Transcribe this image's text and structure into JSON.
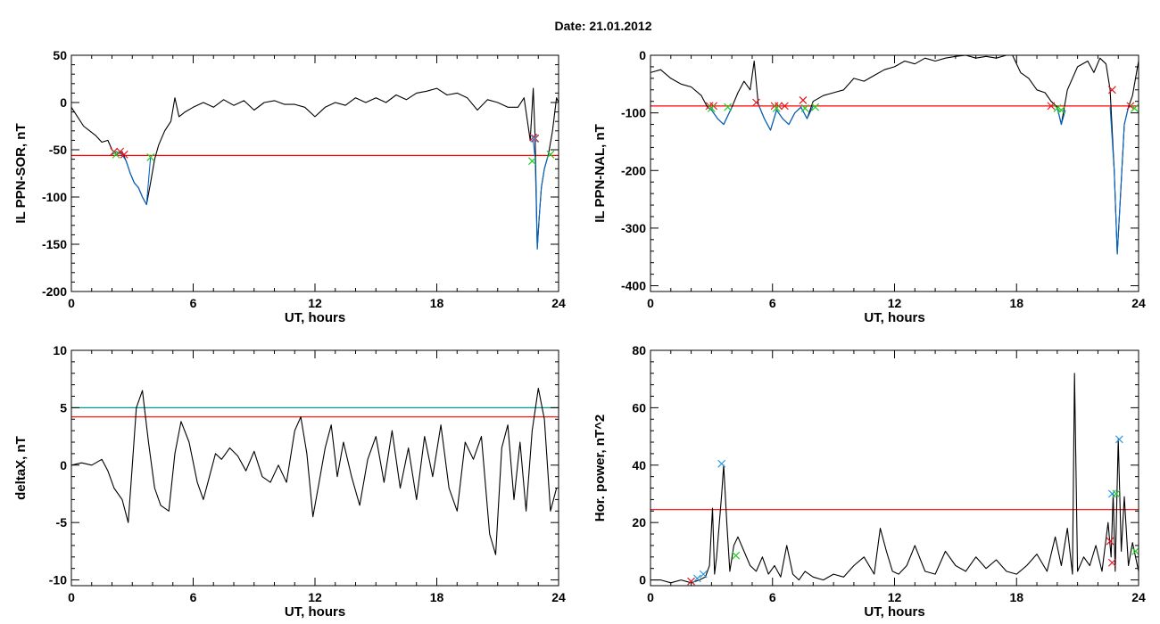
{
  "figure": {
    "title": "Date:  21.01.2012"
  },
  "colors": {
    "background": "#ffffff",
    "axis": "#000000",
    "series": "#000000",
    "threshold_red": "#ff0000",
    "threshold_teal": "#009999",
    "highlight_blue": "#0066cc",
    "marker_red": "#e8141e",
    "marker_green": "#22cc22",
    "marker_blue": "#3399dd"
  },
  "chart_data": [
    {
      "type": "line",
      "xlabel": "UT, hours",
      "ylabel": "IL PPN-SOR, nT",
      "xlim": [
        0,
        24
      ],
      "ylim": [
        -200,
        50
      ],
      "xticks": [
        0,
        6,
        12,
        18,
        24
      ],
      "yticks": [
        -200,
        -150,
        -100,
        -50,
        0,
        50
      ],
      "series": [
        {
          "color": "#000000",
          "x": [
            0,
            0.3,
            0.6,
            0.9,
            1.2,
            1.5,
            1.8,
            2.0,
            2.2,
            2.5,
            2.7,
            2.9,
            3.1,
            3.3,
            3.5,
            3.7,
            3.9,
            4.1,
            4.3,
            4.6,
            4.9,
            5.1,
            5.3,
            5.6,
            6.0,
            6.5,
            7.0,
            7.5,
            8.0,
            8.5,
            9.0,
            9.5,
            10.0,
            10.5,
            11.0,
            11.5,
            12.0,
            12.5,
            13.0,
            13.5,
            14.0,
            14.5,
            15.0,
            15.5,
            16.0,
            16.5,
            17.0,
            17.5,
            18.0,
            18.5,
            19.0,
            19.5,
            20.0,
            20.5,
            21.0,
            21.5,
            22.0,
            22.3,
            22.6,
            22.75,
            22.85,
            22.95,
            23.05,
            23.15,
            23.3,
            23.5,
            23.7,
            23.9,
            24.0
          ],
          "y": [
            -5,
            -15,
            -25,
            -30,
            -35,
            -42,
            -40,
            -50,
            -55,
            -52,
            -62,
            -75,
            -85,
            -90,
            -100,
            -108,
            -85,
            -60,
            -45,
            -30,
            -20,
            5,
            -15,
            -10,
            -5,
            0,
            -5,
            3,
            -3,
            2,
            -8,
            0,
            2,
            -2,
            -2,
            -5,
            -15,
            -5,
            0,
            -3,
            5,
            0,
            5,
            0,
            8,
            3,
            10,
            12,
            15,
            8,
            10,
            5,
            -8,
            3,
            0,
            -5,
            -5,
            5,
            -40,
            15,
            -40,
            -155,
            -120,
            -90,
            -70,
            -55,
            -30,
            5,
            0
          ]
        },
        {
          "color": "#0066cc",
          "x": [
            2.0,
            2.2,
            2.5,
            2.7,
            2.9,
            3.1,
            3.3,
            3.5,
            3.7,
            3.9
          ],
          "y": [
            -55,
            -52,
            -55,
            -62,
            -75,
            -85,
            -90,
            -100,
            -108,
            -58
          ]
        },
        {
          "color": "#0066cc",
          "x": [
            22.75,
            22.85,
            22.95,
            23.05,
            23.15,
            23.3,
            23.5
          ],
          "y": [
            -40,
            -60,
            -155,
            -120,
            -90,
            -70,
            -55
          ]
        }
      ],
      "hlines": [
        {
          "y": -56,
          "color": "#ff0000"
        }
      ],
      "markers": [
        {
          "x": 2.1,
          "y": -52,
          "color": "#e8141e"
        },
        {
          "x": 2.4,
          "y": -52,
          "color": "#e8141e"
        },
        {
          "x": 2.6,
          "y": -55,
          "color": "#e8141e"
        },
        {
          "x": 2.2,
          "y": -55,
          "color": "#22cc22"
        },
        {
          "x": 3.9,
          "y": -58,
          "color": "#22cc22"
        },
        {
          "x": 22.75,
          "y": -37,
          "color": "#e8141e"
        },
        {
          "x": 22.85,
          "y": -38,
          "color": "#e8141e"
        },
        {
          "x": 22.8,
          "y": -38,
          "color": "#3399dd"
        },
        {
          "x": 22.7,
          "y": -62,
          "color": "#22cc22"
        },
        {
          "x": 23.6,
          "y": -55,
          "color": "#22cc22"
        }
      ]
    },
    {
      "type": "line",
      "xlabel": "UT, hours",
      "ylabel": "IL PPN-NAL, nT",
      "xlim": [
        0,
        24
      ],
      "ylim": [
        -410,
        0
      ],
      "xticks": [
        0,
        6,
        12,
        18,
        24
      ],
      "yticks": [
        -400,
        -300,
        -200,
        -100,
        0
      ],
      "series": [
        {
          "color": "#000000",
          "x": [
            0,
            0.5,
            1.0,
            1.5,
            2.0,
            2.5,
            2.8,
            3.0,
            3.3,
            3.6,
            4.0,
            4.3,
            4.6,
            4.9,
            5.1,
            5.3,
            5.6,
            5.9,
            6.2,
            6.5,
            6.8,
            7.1,
            7.4,
            7.7,
            8.0,
            8.5,
            9.0,
            9.5,
            10.0,
            10.5,
            11.0,
            11.5,
            12.0,
            12.5,
            13.0,
            13.5,
            14.0,
            14.5,
            15.0,
            15.5,
            16.0,
            16.5,
            17.0,
            17.5,
            17.8,
            18.2,
            18.6,
            19.0,
            19.4,
            19.7,
            20.0,
            20.2,
            20.5,
            21.0,
            21.5,
            21.8,
            22.1,
            22.4,
            22.6,
            22.8,
            22.95,
            23.1,
            23.3,
            23.5,
            23.7,
            23.9,
            24.0
          ],
          "y": [
            -30,
            -25,
            -40,
            -50,
            -55,
            -70,
            -90,
            -95,
            -110,
            -120,
            -90,
            -65,
            -45,
            -60,
            -10,
            -85,
            -110,
            -130,
            -95,
            -110,
            -120,
            -100,
            -90,
            -110,
            -80,
            -70,
            -65,
            -60,
            -40,
            -45,
            -35,
            -25,
            -20,
            -10,
            -15,
            -5,
            -10,
            -5,
            -2,
            0,
            -5,
            -2,
            -5,
            0,
            0,
            -30,
            -40,
            -60,
            -65,
            -80,
            -90,
            -120,
            -60,
            -20,
            -10,
            -30,
            -5,
            -15,
            -60,
            -200,
            -345,
            -250,
            -120,
            -90,
            -70,
            -30,
            -10
          ]
        },
        {
          "color": "#0066cc",
          "x": [
            2.8,
            3.0,
            3.3,
            3.6,
            4.0
          ],
          "y": [
            -90,
            -95,
            -110,
            -120,
            -90
          ]
        },
        {
          "color": "#0066cc",
          "x": [
            5.3,
            5.6,
            5.9,
            6.2,
            6.5,
            6.8,
            7.1,
            7.4,
            7.7,
            8.0
          ],
          "y": [
            -85,
            -110,
            -130,
            -95,
            -110,
            -120,
            -100,
            -90,
            -110,
            -88
          ]
        },
        {
          "color": "#0066cc",
          "x": [
            20.0,
            20.2,
            20.4
          ],
          "y": [
            -90,
            -120,
            -95
          ]
        },
        {
          "color": "#0066cc",
          "x": [
            22.6,
            22.8,
            22.95,
            23.1,
            23.3,
            23.5,
            23.7
          ],
          "y": [
            -90,
            -200,
            -345,
            -250,
            -120,
            -90,
            -88
          ]
        }
      ],
      "hlines": [
        {
          "y": -88,
          "color": "#ff0000"
        }
      ],
      "markers": [
        {
          "x": 2.9,
          "y": -88,
          "color": "#e8141e"
        },
        {
          "x": 3.1,
          "y": -88,
          "color": "#e8141e"
        },
        {
          "x": 3.0,
          "y": -92,
          "color": "#22cc22"
        },
        {
          "x": 3.8,
          "y": -90,
          "color": "#22cc22"
        },
        {
          "x": 5.2,
          "y": -82,
          "color": "#e8141e"
        },
        {
          "x": 6.1,
          "y": -88,
          "color": "#e8141e"
        },
        {
          "x": 6.3,
          "y": -88,
          "color": "#e8141e"
        },
        {
          "x": 6.6,
          "y": -88,
          "color": "#e8141e"
        },
        {
          "x": 6.2,
          "y": -92,
          "color": "#22cc22"
        },
        {
          "x": 7.5,
          "y": -78,
          "color": "#e8141e"
        },
        {
          "x": 7.6,
          "y": -92,
          "color": "#22cc22"
        },
        {
          "x": 8.1,
          "y": -90,
          "color": "#22cc22"
        },
        {
          "x": 19.7,
          "y": -88,
          "color": "#e8141e"
        },
        {
          "x": 20.0,
          "y": -92,
          "color": "#22cc22"
        },
        {
          "x": 20.2,
          "y": -95,
          "color": "#22cc22"
        },
        {
          "x": 22.7,
          "y": -60,
          "color": "#e8141e"
        },
        {
          "x": 23.6,
          "y": -88,
          "color": "#e8141e"
        },
        {
          "x": 23.8,
          "y": -92,
          "color": "#22cc22"
        }
      ]
    },
    {
      "type": "line",
      "xlabel": "UT, hours",
      "ylabel": "deltaX, nT",
      "xlim": [
        0,
        24
      ],
      "ylim": [
        -10.5,
        10
      ],
      "xticks": [
        0,
        6,
        12,
        18,
        24
      ],
      "yticks": [
        -10,
        -5,
        0,
        5,
        10
      ],
      "series": [
        {
          "color": "#000000",
          "x": [
            0,
            0.5,
            1.0,
            1.5,
            1.8,
            2.1,
            2.5,
            2.8,
            3.0,
            3.2,
            3.5,
            3.8,
            4.1,
            4.4,
            4.8,
            5.1,
            5.4,
            5.8,
            6.2,
            6.5,
            6.8,
            7.1,
            7.4,
            7.8,
            8.2,
            8.6,
            9.0,
            9.4,
            9.8,
            10.2,
            10.6,
            11.0,
            11.3,
            11.6,
            11.9,
            12.2,
            12.5,
            12.8,
            13.1,
            13.4,
            13.8,
            14.2,
            14.6,
            15.0,
            15.4,
            15.8,
            16.2,
            16.6,
            17.0,
            17.4,
            17.8,
            18.2,
            18.6,
            19.0,
            19.4,
            19.8,
            20.2,
            20.6,
            20.9,
            21.2,
            21.5,
            21.8,
            22.1,
            22.4,
            22.7,
            23.0,
            23.3,
            23.6,
            23.9,
            24.0
          ],
          "y": [
            0,
            0.2,
            0,
            0.5,
            -0.5,
            -2,
            -3,
            -5,
            0,
            5,
            6.5,
            2,
            -2,
            -3.5,
            -4,
            1,
            3.8,
            2,
            -1.5,
            -3,
            -1,
            1,
            0.5,
            1.5,
            0.8,
            -0.5,
            1.2,
            -1,
            -1.5,
            0,
            -1.5,
            3,
            4.2,
            1,
            -4.5,
            -1.5,
            1.5,
            3.5,
            -1,
            2,
            -1,
            -3.5,
            0.5,
            2.5,
            -1.5,
            3,
            -2,
            1.5,
            -3,
            2.5,
            -1,
            3.5,
            -2,
            -4,
            2,
            0.5,
            2.5,
            -6,
            -7.8,
            1.5,
            3.5,
            -3,
            2,
            -4,
            3,
            6.7,
            4,
            -4,
            -2,
            -2
          ]
        }
      ],
      "hlines": [
        {
          "y": 5,
          "color": "#009999"
        },
        {
          "y": 4.2,
          "color": "#ff0000"
        }
      ],
      "markers": []
    },
    {
      "type": "line",
      "xlabel": "UT, hours",
      "ylabel": "Hor. power, nT^2",
      "xlim": [
        0,
        24
      ],
      "ylim": [
        -2,
        80
      ],
      "xticks": [
        0,
        6,
        12,
        18,
        24
      ],
      "yticks": [
        0,
        20,
        40,
        60,
        80
      ],
      "series": [
        {
          "color": "#000000",
          "x": [
            0,
            0.5,
            1.0,
            1.5,
            2.0,
            2.4,
            2.7,
            2.9,
            3.05,
            3.15,
            3.25,
            3.5,
            3.6,
            3.75,
            3.9,
            4.1,
            4.3,
            4.6,
            4.9,
            5.2,
            5.5,
            5.8,
            6.1,
            6.4,
            6.7,
            7.0,
            7.3,
            7.6,
            8.0,
            8.5,
            9.0,
            9.5,
            10.0,
            10.5,
            11.0,
            11.3,
            11.6,
            11.9,
            12.2,
            12.6,
            13.0,
            13.5,
            14.0,
            14.5,
            15.0,
            15.5,
            16.0,
            16.5,
            17.0,
            17.5,
            18.0,
            18.5,
            19.0,
            19.5,
            19.9,
            20.2,
            20.5,
            20.75,
            20.85,
            21.0,
            21.3,
            21.6,
            21.9,
            22.2,
            22.5,
            22.65,
            22.75,
            22.85,
            23.0,
            23.15,
            23.3,
            23.5,
            23.7,
            24.0
          ],
          "y": [
            0,
            0,
            -1,
            0,
            -1,
            0,
            1,
            5,
            25,
            2,
            8,
            30,
            40,
            20,
            3,
            12,
            15,
            10,
            5,
            3,
            8,
            2,
            5,
            1,
            12,
            2,
            0,
            3,
            1,
            0,
            2,
            1,
            5,
            8,
            2,
            18,
            10,
            3,
            2,
            5,
            12,
            3,
            2,
            10,
            5,
            3,
            8,
            4,
            7,
            3,
            2,
            5,
            9,
            3,
            15,
            5,
            18,
            2,
            72,
            3,
            8,
            5,
            12,
            3,
            20,
            8,
            30,
            3,
            49,
            10,
            29,
            5,
            13,
            3
          ]
        }
      ],
      "hlines": [
        {
          "y": 24.5,
          "color": "#ff0000"
        }
      ],
      "markers": [
        {
          "x": 2.0,
          "y": -0.5,
          "color": "#e8141e"
        },
        {
          "x": 2.3,
          "y": 0.5,
          "color": "#3399dd"
        },
        {
          "x": 2.6,
          "y": 2,
          "color": "#3399dd"
        },
        {
          "x": 3.5,
          "y": 40.5,
          "color": "#3399dd"
        },
        {
          "x": 4.2,
          "y": 8.5,
          "color": "#22cc22"
        },
        {
          "x": 22.6,
          "y": 13.5,
          "color": "#e8141e"
        },
        {
          "x": 22.7,
          "y": 6,
          "color": "#e8141e"
        },
        {
          "x": 22.7,
          "y": 30,
          "color": "#3399dd"
        },
        {
          "x": 22.9,
          "y": 30,
          "color": "#22cc22"
        },
        {
          "x": 23.05,
          "y": 49,
          "color": "#3399dd"
        },
        {
          "x": 23.85,
          "y": 10,
          "color": "#22cc22"
        }
      ]
    }
  ]
}
